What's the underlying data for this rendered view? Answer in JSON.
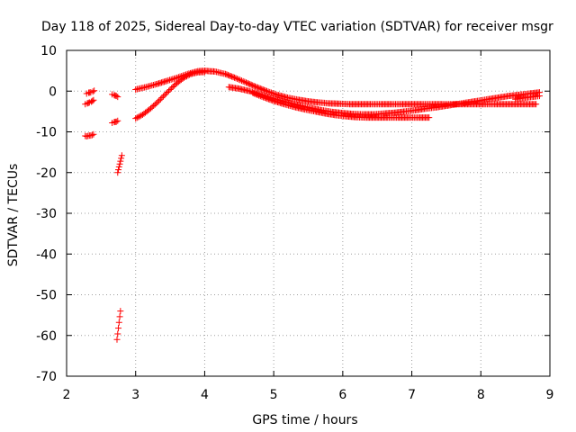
{
  "chart_data": {
    "type": "scatter",
    "title": "Day 118 of 2025, Sidereal Day-to-day VTEC variation (SDTVAR) for receiver msgr",
    "xlabel": "GPS time / hours",
    "ylabel": "SDTVAR / TECUs",
    "xlim": [
      2,
      9
    ],
    "ylim": [
      -70,
      10
    ],
    "xticks": [
      2,
      3,
      4,
      5,
      6,
      7,
      8,
      9
    ],
    "yticks": [
      -70,
      -60,
      -50,
      -40,
      -30,
      -20,
      -10,
      0,
      10
    ],
    "grid": true,
    "marker": "+",
    "color": "#ff0000",
    "segments": [
      {
        "name": "arc-a",
        "x": [
          2.27,
          2.29,
          2.31,
          2.33,
          2.35,
          2.37,
          2.39
        ],
        "y": [
          -11.0,
          -11.1,
          -11.0,
          -10.9,
          -10.9,
          -10.8,
          -10.6
        ]
      },
      {
        "name": "arc-b",
        "x": [
          2.27,
          2.3,
          2.33,
          2.36,
          2.39
        ],
        "y": [
          -3.2,
          -3.0,
          -2.8,
          -2.6,
          -2.2
        ]
      },
      {
        "name": "arc-c",
        "x": [
          2.29,
          2.32,
          2.35,
          2.38,
          2.4
        ],
        "y": [
          -0.6,
          -0.4,
          -0.3,
          -0.1,
          0.1
        ]
      },
      {
        "name": "arc-d",
        "x": [
          2.66,
          2.69,
          2.72,
          2.74
        ],
        "y": [
          -7.8,
          -7.6,
          -7.5,
          -7.3
        ]
      },
      {
        "name": "arc-e",
        "x": [
          2.66,
          2.69,
          2.72,
          2.74
        ],
        "y": [
          -0.8,
          -1.0,
          -1.2,
          -1.4
        ]
      },
      {
        "name": "arc-f",
        "x": [
          2.74,
          2.75,
          2.76,
          2.77,
          2.78,
          2.79,
          2.8
        ],
        "y": [
          -20.0,
          -19.3,
          -18.6,
          -17.9,
          -17.2,
          -16.5,
          -15.8
        ]
      },
      {
        "name": "arc-g",
        "x": [
          2.73,
          2.74,
          2.75,
          2.76,
          2.77,
          2.78
        ],
        "y": [
          -61.0,
          -59.6,
          -58.2,
          -56.8,
          -55.4,
          -54.0
        ]
      },
      {
        "name": "arc-h",
        "x": [
          3.0,
          3.1,
          3.2,
          3.3,
          3.4,
          3.5,
          3.6,
          3.7,
          3.8,
          3.9,
          4.0
        ],
        "y": [
          -6.7,
          -5.8,
          -4.5,
          -3.0,
          -1.3,
          0.4,
          2.0,
          3.3,
          4.2,
          4.6,
          4.7
        ]
      },
      {
        "name": "arc-i",
        "x": [
          3.0,
          3.15,
          3.3,
          3.45,
          3.6,
          3.75,
          3.9,
          4.0,
          4.15,
          4.3,
          4.45,
          4.6,
          4.75,
          4.9,
          5.05,
          5.2,
          5.35,
          5.5,
          5.65,
          5.8,
          5.95,
          6.1,
          6.25,
          6.4,
          6.55,
          6.7,
          6.85,
          7.0,
          7.15,
          7.3,
          7.45,
          7.6,
          7.75,
          7.9,
          8.05,
          8.2,
          8.35,
          8.5,
          8.65,
          8.8
        ],
        "y": [
          0.4,
          1.0,
          1.7,
          2.5,
          3.3,
          4.2,
          4.9,
          5.0,
          4.8,
          4.2,
          3.2,
          2.1,
          1.0,
          0.0,
          -0.9,
          -1.6,
          -2.1,
          -2.5,
          -2.8,
          -3.0,
          -3.1,
          -3.2,
          -3.2,
          -3.2,
          -3.2,
          -3.2,
          -3.2,
          -3.2,
          -3.2,
          -3.2,
          -3.2,
          -3.2,
          -3.2,
          -3.2,
          -3.2,
          -3.2,
          -3.2,
          -3.2,
          -3.2,
          -3.2
        ]
      },
      {
        "name": "arc-j",
        "x": [
          4.35,
          4.5,
          4.65,
          4.8,
          4.95,
          5.1,
          5.25,
          5.4,
          5.55,
          5.7,
          5.85,
          6.0,
          6.15,
          6.3,
          6.45,
          6.6,
          6.75,
          6.9,
          7.05,
          7.2,
          7.35,
          7.5,
          7.65,
          7.8,
          7.95,
          8.1,
          8.25,
          8.4,
          8.55,
          8.7,
          8.85
        ],
        "y": [
          1.0,
          0.6,
          0.0,
          -0.8,
          -1.6,
          -2.3,
          -3.0,
          -3.6,
          -4.2,
          -4.7,
          -5.1,
          -5.4,
          -5.6,
          -5.7,
          -5.7,
          -5.5,
          -5.3,
          -5.0,
          -4.7,
          -4.3,
          -4.0,
          -3.6,
          -3.2,
          -2.8,
          -2.4,
          -2.0,
          -1.6,
          -1.2,
          -0.9,
          -0.6,
          -0.3
        ]
      },
      {
        "name": "arc-k",
        "x": [
          4.7,
          4.85,
          5.0,
          5.15,
          5.3,
          5.45,
          5.6,
          5.75,
          5.9,
          6.05,
          6.2,
          6.35,
          6.5,
          6.65,
          6.8,
          6.95,
          7.1,
          7.25
        ],
        "y": [
          -0.5,
          -1.5,
          -2.4,
          -3.2,
          -3.9,
          -4.5,
          -5.0,
          -5.5,
          -5.9,
          -6.2,
          -6.4,
          -6.5,
          -6.5,
          -6.5,
          -6.5,
          -6.5,
          -6.5,
          -6.5
        ]
      },
      {
        "name": "arc-l",
        "x": [
          8.5,
          8.6,
          8.7,
          8.8,
          8.85
        ],
        "y": [
          -2.0,
          -1.7,
          -1.5,
          -1.3,
          -1.2
        ]
      }
    ]
  }
}
